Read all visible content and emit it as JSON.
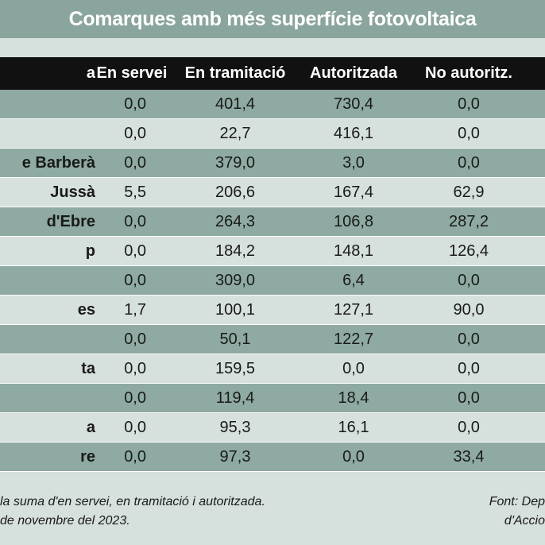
{
  "chart_data": {
    "type": "table",
    "title": "Comarques amb més superfície fotovoltaica",
    "columns": [
      "a",
      "En servei",
      "En tramitació",
      "Autoritzada",
      "No autoritz."
    ],
    "rows": [
      {
        "name": "",
        "values": [
          "0,0",
          "401,4",
          "730,4",
          "0,0"
        ]
      },
      {
        "name": "",
        "values": [
          "0,0",
          "22,7",
          "416,1",
          "0,0"
        ]
      },
      {
        "name": "e Barberà",
        "values": [
          "0,0",
          "379,0",
          "3,0",
          "0,0"
        ]
      },
      {
        "name": "Jussà",
        "values": [
          "5,5",
          "206,6",
          "167,4",
          "62,9"
        ]
      },
      {
        "name": "d'Ebre",
        "values": [
          "0,0",
          "264,3",
          "106,8",
          "287,2"
        ]
      },
      {
        "name": "p",
        "values": [
          "0,0",
          "184,2",
          "148,1",
          "126,4"
        ]
      },
      {
        "name": "",
        "values": [
          "0,0",
          "309,0",
          "6,4",
          "0,0"
        ]
      },
      {
        "name": "es",
        "values": [
          "1,7",
          "100,1",
          "127,1",
          "90,0"
        ]
      },
      {
        "name": "",
        "values": [
          "0,0",
          "50,1",
          "122,7",
          "0,0"
        ]
      },
      {
        "name": "ta",
        "values": [
          "0,0",
          "159,5",
          "0,0",
          "0,0"
        ]
      },
      {
        "name": "",
        "values": [
          "0,0",
          "119,4",
          "18,4",
          "0,0"
        ]
      },
      {
        "name": "a",
        "values": [
          "0,0",
          "95,3",
          "16,1",
          "0,0"
        ]
      },
      {
        "name": "re",
        "values": [
          "0,0",
          "97,3",
          "0,0",
          "33,4"
        ]
      }
    ],
    "footnote_lines": [
      "la suma d'en servei, en tramitació i autoritzada.",
      "de novembre del 2023."
    ],
    "source_lines": [
      "Font: Dep",
      "d'Accio"
    ]
  },
  "colors": {
    "title_bg": "#8aa59d",
    "header_bg": "#111111",
    "row_shade": "#8eaaa2",
    "row_light": "#d6e0dd"
  }
}
